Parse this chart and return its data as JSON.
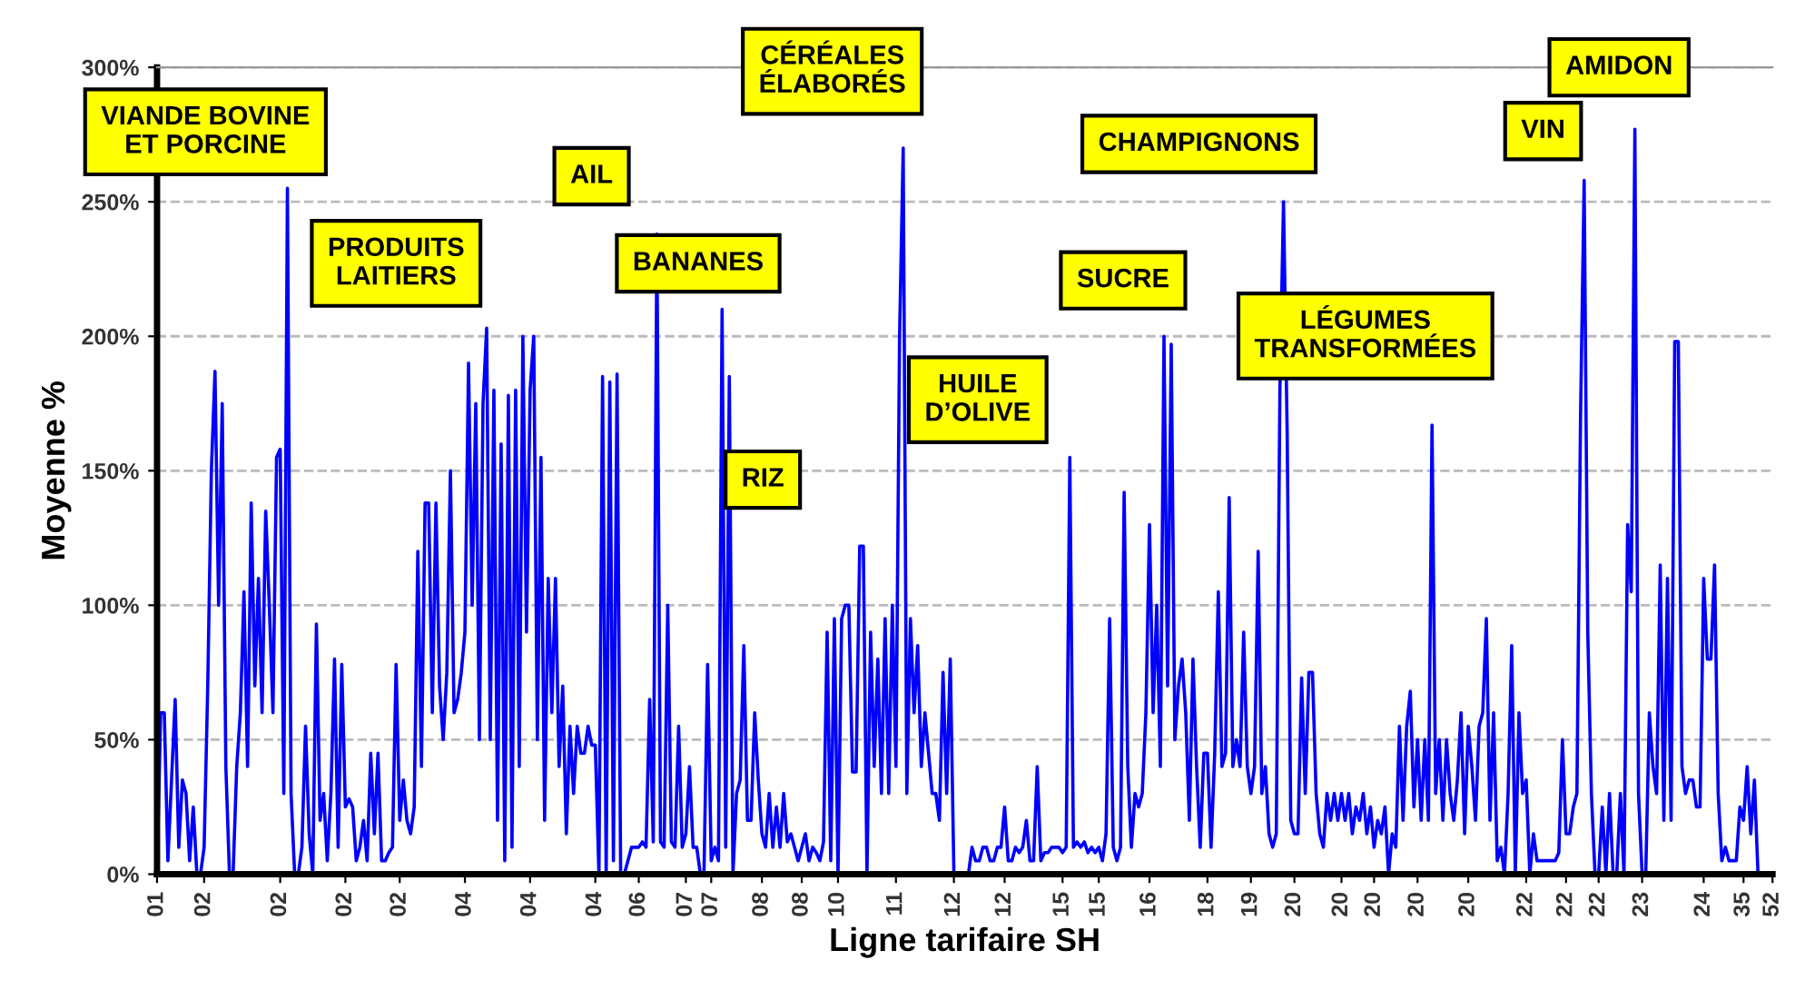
{
  "chart_data": {
    "type": "line",
    "xlabel": "Ligne tarifaire SH",
    "ylabel": "Moyenne %",
    "ylim": [
      0,
      300
    ],
    "yticks": [
      {
        "value": 0,
        "label": "0%"
      },
      {
        "value": 50,
        "label": "50%"
      },
      {
        "value": 100,
        "label": "100%"
      },
      {
        "value": 150,
        "label": "150%"
      },
      {
        "value": 200,
        "label": "200%"
      },
      {
        "value": 250,
        "label": "250%"
      },
      {
        "value": 300,
        "label": "300%"
      }
    ],
    "grid": "y",
    "line_style": "solid",
    "marker": "none",
    "categories": [
      "01",
      null,
      null,
      null,
      null,
      null,
      null,
      null,
      null,
      null,
      null,
      null,
      null,
      "02",
      null,
      null,
      null,
      null,
      null,
      null,
      null,
      null,
      null,
      null,
      null,
      null,
      null,
      null,
      null,
      null,
      null,
      null,
      null,
      null,
      "02",
      null,
      null,
      null,
      null,
      null,
      null,
      null,
      null,
      null,
      null,
      null,
      null,
      null,
      null,
      null,
      null,
      null,
      "02",
      null,
      null,
      null,
      null,
      null,
      null,
      null,
      null,
      null,
      null,
      null,
      null,
      null,
      null,
      "02",
      null,
      null,
      null,
      null,
      null,
      null,
      null,
      null,
      null,
      null,
      null,
      null,
      null,
      null,
      null,
      null,
      null,
      "04",
      null,
      null,
      null,
      null,
      null,
      null,
      null,
      null,
      null,
      null,
      null,
      null,
      null,
      null,
      null,
      null,
      null,
      "04",
      null,
      null,
      null,
      null,
      null,
      null,
      null,
      null,
      null,
      null,
      null,
      null,
      null,
      null,
      null,
      null,
      null,
      "04",
      null,
      null,
      null,
      null,
      null,
      null,
      null,
      null,
      null,
      null,
      null,
      "06",
      null,
      null,
      null,
      null,
      null,
      null,
      null,
      null,
      null,
      null,
      null,
      null,
      "07",
      null,
      null,
      null,
      null,
      null,
      null,
      "07",
      null,
      null,
      null,
      null,
      null,
      null,
      null,
      null,
      null,
      null,
      null,
      null,
      null,
      "08",
      null,
      null,
      null,
      null,
      null,
      null,
      null,
      null,
      null,
      null,
      "08",
      null,
      null,
      null,
      null,
      null,
      null,
      null,
      null,
      null,
      "10",
      null,
      null,
      null,
      null,
      null,
      null,
      null,
      null,
      null,
      null,
      null,
      null,
      null,
      null,
      null,
      "11",
      null,
      null,
      null,
      null,
      null,
      null,
      null,
      null,
      null,
      null,
      null,
      null,
      null,
      null,
      null,
      "12",
      null,
      null,
      null,
      null,
      null,
      null,
      null,
      null,
      null,
      null,
      null,
      null,
      null,
      "12",
      null,
      null,
      null,
      null,
      null,
      null,
      null,
      null,
      null,
      null,
      null,
      null,
      null,
      null,
      null,
      "15",
      null,
      null,
      null,
      null,
      null,
      null,
      null,
      null,
      null,
      "15",
      null,
      null,
      null,
      null,
      null,
      null,
      null,
      null,
      null,
      null,
      null,
      null,
      null,
      "16",
      null,
      null,
      null,
      null,
      null,
      null,
      null,
      null,
      null,
      null,
      null,
      null,
      null,
      null,
      null,
      "18",
      null,
      null,
      null,
      null,
      null,
      null,
      null,
      null,
      null,
      null,
      null,
      "19",
      null,
      null,
      null,
      null,
      null,
      null,
      null,
      null,
      null,
      null,
      null,
      "20",
      null,
      null,
      null,
      null,
      null,
      null,
      null,
      null,
      null,
      null,
      null,
      null,
      "20",
      null,
      null,
      null,
      null,
      null,
      null,
      null,
      null,
      "20",
      null,
      null,
      null,
      null,
      null,
      null,
      null,
      null,
      null,
      null,
      null,
      "20",
      null,
      null,
      null,
      null,
      null,
      null,
      null,
      null,
      null,
      null,
      null,
      null,
      null,
      "20",
      null,
      null,
      null,
      null,
      null,
      null,
      null,
      null,
      null,
      null,
      null,
      null,
      null,
      null,
      null,
      "22",
      null,
      null,
      null,
      null,
      null,
      null,
      null,
      null,
      null,
      null,
      "22",
      null,
      null,
      null,
      null,
      null,
      null,
      null,
      null,
      "22",
      null,
      null,
      null,
      null,
      null,
      null,
      null,
      null,
      null,
      null,
      null,
      "23",
      null,
      null,
      null,
      null,
      null,
      null,
      null,
      null,
      null,
      null,
      null,
      null,
      null,
      null,
      null,
      null,
      "24",
      null,
      null,
      null,
      null,
      null,
      null,
      null,
      null,
      null,
      null,
      "35",
      null,
      null,
      null,
      null,
      null,
      null,
      null,
      "52"
    ],
    "series": [
      {
        "color": "#0000ff",
        "values": [
          0,
          60,
          60,
          5,
          35,
          65,
          10,
          35,
          30,
          5,
          25,
          0,
          0,
          10,
          70,
          150,
          187,
          100,
          175,
          40,
          0,
          0,
          40,
          60,
          105,
          40,
          138,
          70,
          110,
          60,
          135,
          100,
          60,
          155,
          158,
          30,
          255,
          30,
          0,
          0,
          10,
          55,
          15,
          0,
          93,
          20,
          30,
          5,
          30,
          80,
          10,
          78,
          25,
          28,
          25,
          5,
          10,
          20,
          5,
          45,
          15,
          45,
          5,
          5,
          8,
          10,
          78,
          20,
          35,
          20,
          15,
          25,
          120,
          40,
          138,
          138,
          60,
          138,
          70,
          50,
          75,
          150,
          60,
          65,
          75,
          90,
          190,
          100,
          175,
          50,
          175,
          203,
          50,
          180,
          20,
          160,
          5,
          178,
          10,
          180,
          40,
          200,
          90,
          180,
          200,
          50,
          155,
          20,
          110,
          60,
          110,
          40,
          70,
          15,
          55,
          30,
          55,
          45,
          45,
          55,
          48,
          48,
          0,
          185,
          0,
          183,
          5,
          186,
          0,
          0,
          5,
          10,
          10,
          10,
          12,
          10,
          65,
          12,
          238,
          12,
          10,
          100,
          12,
          10,
          55,
          10,
          15,
          40,
          10,
          10,
          0,
          0,
          78,
          5,
          10,
          5,
          210,
          10,
          185,
          0,
          30,
          35,
          85,
          20,
          20,
          60,
          35,
          15,
          10,
          30,
          10,
          25,
          10,
          30,
          12,
          15,
          10,
          5,
          10,
          15,
          5,
          10,
          8,
          5,
          12,
          90,
          5,
          95,
          0,
          95,
          100,
          100,
          38,
          38,
          122,
          122,
          0,
          90,
          40,
          80,
          30,
          95,
          30,
          100,
          40,
          200,
          270,
          30,
          95,
          60,
          85,
          40,
          60,
          45,
          30,
          30,
          20,
          75,
          30,
          80,
          0,
          0,
          0,
          0,
          0,
          10,
          5,
          5,
          10,
          10,
          5,
          5,
          10,
          10,
          25,
          5,
          5,
          10,
          8,
          10,
          20,
          5,
          5,
          40,
          5,
          8,
          8,
          10,
          10,
          10,
          8,
          10,
          155,
          10,
          12,
          10,
          12,
          8,
          10,
          8,
          10,
          5,
          15,
          95,
          10,
          5,
          10,
          142,
          40,
          10,
          30,
          25,
          30,
          60,
          130,
          60,
          100,
          40,
          200,
          70,
          197,
          50,
          70,
          80,
          60,
          20,
          80,
          40,
          10,
          45,
          45,
          10,
          45,
          105,
          40,
          45,
          140,
          40,
          50,
          40,
          90,
          40,
          30,
          40,
          120,
          30,
          40,
          15,
          10,
          15,
          180,
          250,
          165,
          20,
          15,
          15,
          73,
          30,
          75,
          75,
          30,
          15,
          10,
          30,
          20,
          30,
          20,
          30,
          20,
          30,
          15,
          25,
          20,
          30,
          15,
          25,
          10,
          20,
          15,
          25,
          0,
          15,
          10,
          55,
          20,
          55,
          68,
          25,
          50,
          20,
          50,
          20,
          167,
          30,
          50,
          20,
          50,
          30,
          20,
          35,
          60,
          15,
          55,
          40,
          20,
          55,
          60,
          95,
          20,
          60,
          5,
          10,
          0,
          30,
          85,
          0,
          60,
          30,
          35,
          0,
          15,
          5,
          5,
          5,
          5,
          5,
          5,
          8,
          50,
          15,
          15,
          25,
          30,
          170,
          258,
          90,
          30,
          0,
          0,
          25,
          0,
          30,
          0,
          0,
          30,
          0,
          130,
          105,
          277,
          30,
          0,
          0,
          60,
          40,
          30,
          115,
          20,
          110,
          20,
          198,
          198,
          40,
          30,
          35,
          35,
          25,
          25,
          110,
          80,
          80,
          115,
          30,
          5,
          10,
          5,
          5,
          5,
          25,
          20,
          40,
          15,
          35,
          0,
          0,
          0,
          0,
          0
        ]
      }
    ],
    "annotations": [
      "VIANDE BOVINE\nET PORCINE",
      "PRODUITS\nLAITIERS",
      "AIL",
      "BANANES",
      "RIZ",
      "CÉRÉALES\nÉLABORÉS",
      "HUILE\nD’OLIVE",
      "SUCRE",
      "CHAMPIGNONS",
      "LÉGUMES\nTRANSFORMÉES",
      "VIN",
      "AMIDON"
    ]
  }
}
